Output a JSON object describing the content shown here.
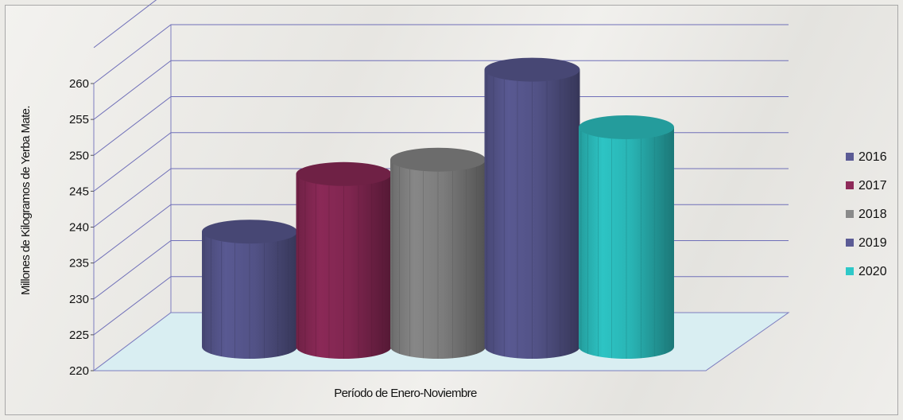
{
  "chart_data": {
    "type": "bar",
    "style": "3d-cylinder",
    "categories": [
      "2016",
      "2017",
      "2018",
      "2019",
      "2020"
    ],
    "values": [
      236,
      244,
      246,
      258.5,
      250.5
    ],
    "colors": [
      "#5b5b95",
      "#8e2a59",
      "#8a8a8a",
      "#5b5b95",
      "#2ec8c8"
    ],
    "title": "",
    "xlabel": "Período de Enero-Noviembre",
    "ylabel": "Millones de Kilogramos de Yerba Mate.",
    "ylim": [
      220,
      260
    ],
    "yticks": [
      220,
      225,
      230,
      235,
      240,
      245,
      250,
      255,
      260
    ],
    "grid": true,
    "legend": {
      "position": "right",
      "entries": [
        "2016",
        "2017",
        "2018",
        "2019",
        "2020"
      ]
    }
  }
}
